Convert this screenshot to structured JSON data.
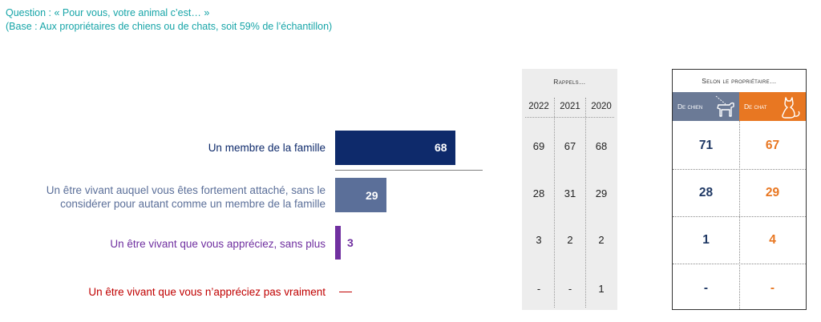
{
  "header": {
    "question": "Question : « Pour vous, votre animal c’est… »",
    "base": "(Base : Aux propriétaires de chiens ou de chats, soit 59% de l’échantillon)"
  },
  "chart_data": {
    "type": "bar",
    "orientation": "horizontal",
    "categories": [
      "Un membre de la famille",
      "Un être vivant auquel vous êtes fortement attaché, sans le considérer pour autant comme un membre de la famille",
      "Un être vivant que vous appréciez, sans plus",
      "Un être vivant que vous n’appréciez pas vraiment"
    ],
    "category_lines": [
      [
        "Un membre de la famille"
      ],
      [
        "Un être vivant auquel vous êtes fortement attaché, sans le",
        "considérer pour autant comme un membre de la famille"
      ],
      [
        "Un être vivant que vous appréciez, sans plus"
      ],
      [
        "Un être vivant que vous n’appréciez pas vraiment"
      ]
    ],
    "values": [
      68,
      29,
      3,
      null
    ],
    "value_labels": [
      "68",
      "29",
      "3",
      "—"
    ],
    "colors": [
      "#0E2A6B",
      "#5B6F99",
      "#7030A0",
      "#C00000"
    ],
    "xlim": [
      0,
      100
    ]
  },
  "rappels": {
    "title": "Rappels…",
    "years": [
      "2022",
      "2021",
      "2020"
    ],
    "rows": [
      [
        "69",
        "67",
        "68"
      ],
      [
        "28",
        "31",
        "29"
      ],
      [
        "3",
        "2",
        "2"
      ],
      [
        "-",
        "-",
        "1"
      ]
    ]
  },
  "owner": {
    "title": "Selon le propriétaire…",
    "headers": [
      "De chien",
      "De chat"
    ],
    "dog_icon": "dog-on-leash-icon",
    "cat_icon": "cat-icon",
    "header_colors": [
      "#6B7A96",
      "#E87722"
    ],
    "value_colors": [
      "#1F3864",
      "#E87722"
    ],
    "rows": [
      [
        "71",
        "67"
      ],
      [
        "28",
        "29"
      ],
      [
        "1",
        "4"
      ],
      [
        "-",
        "-"
      ]
    ]
  }
}
